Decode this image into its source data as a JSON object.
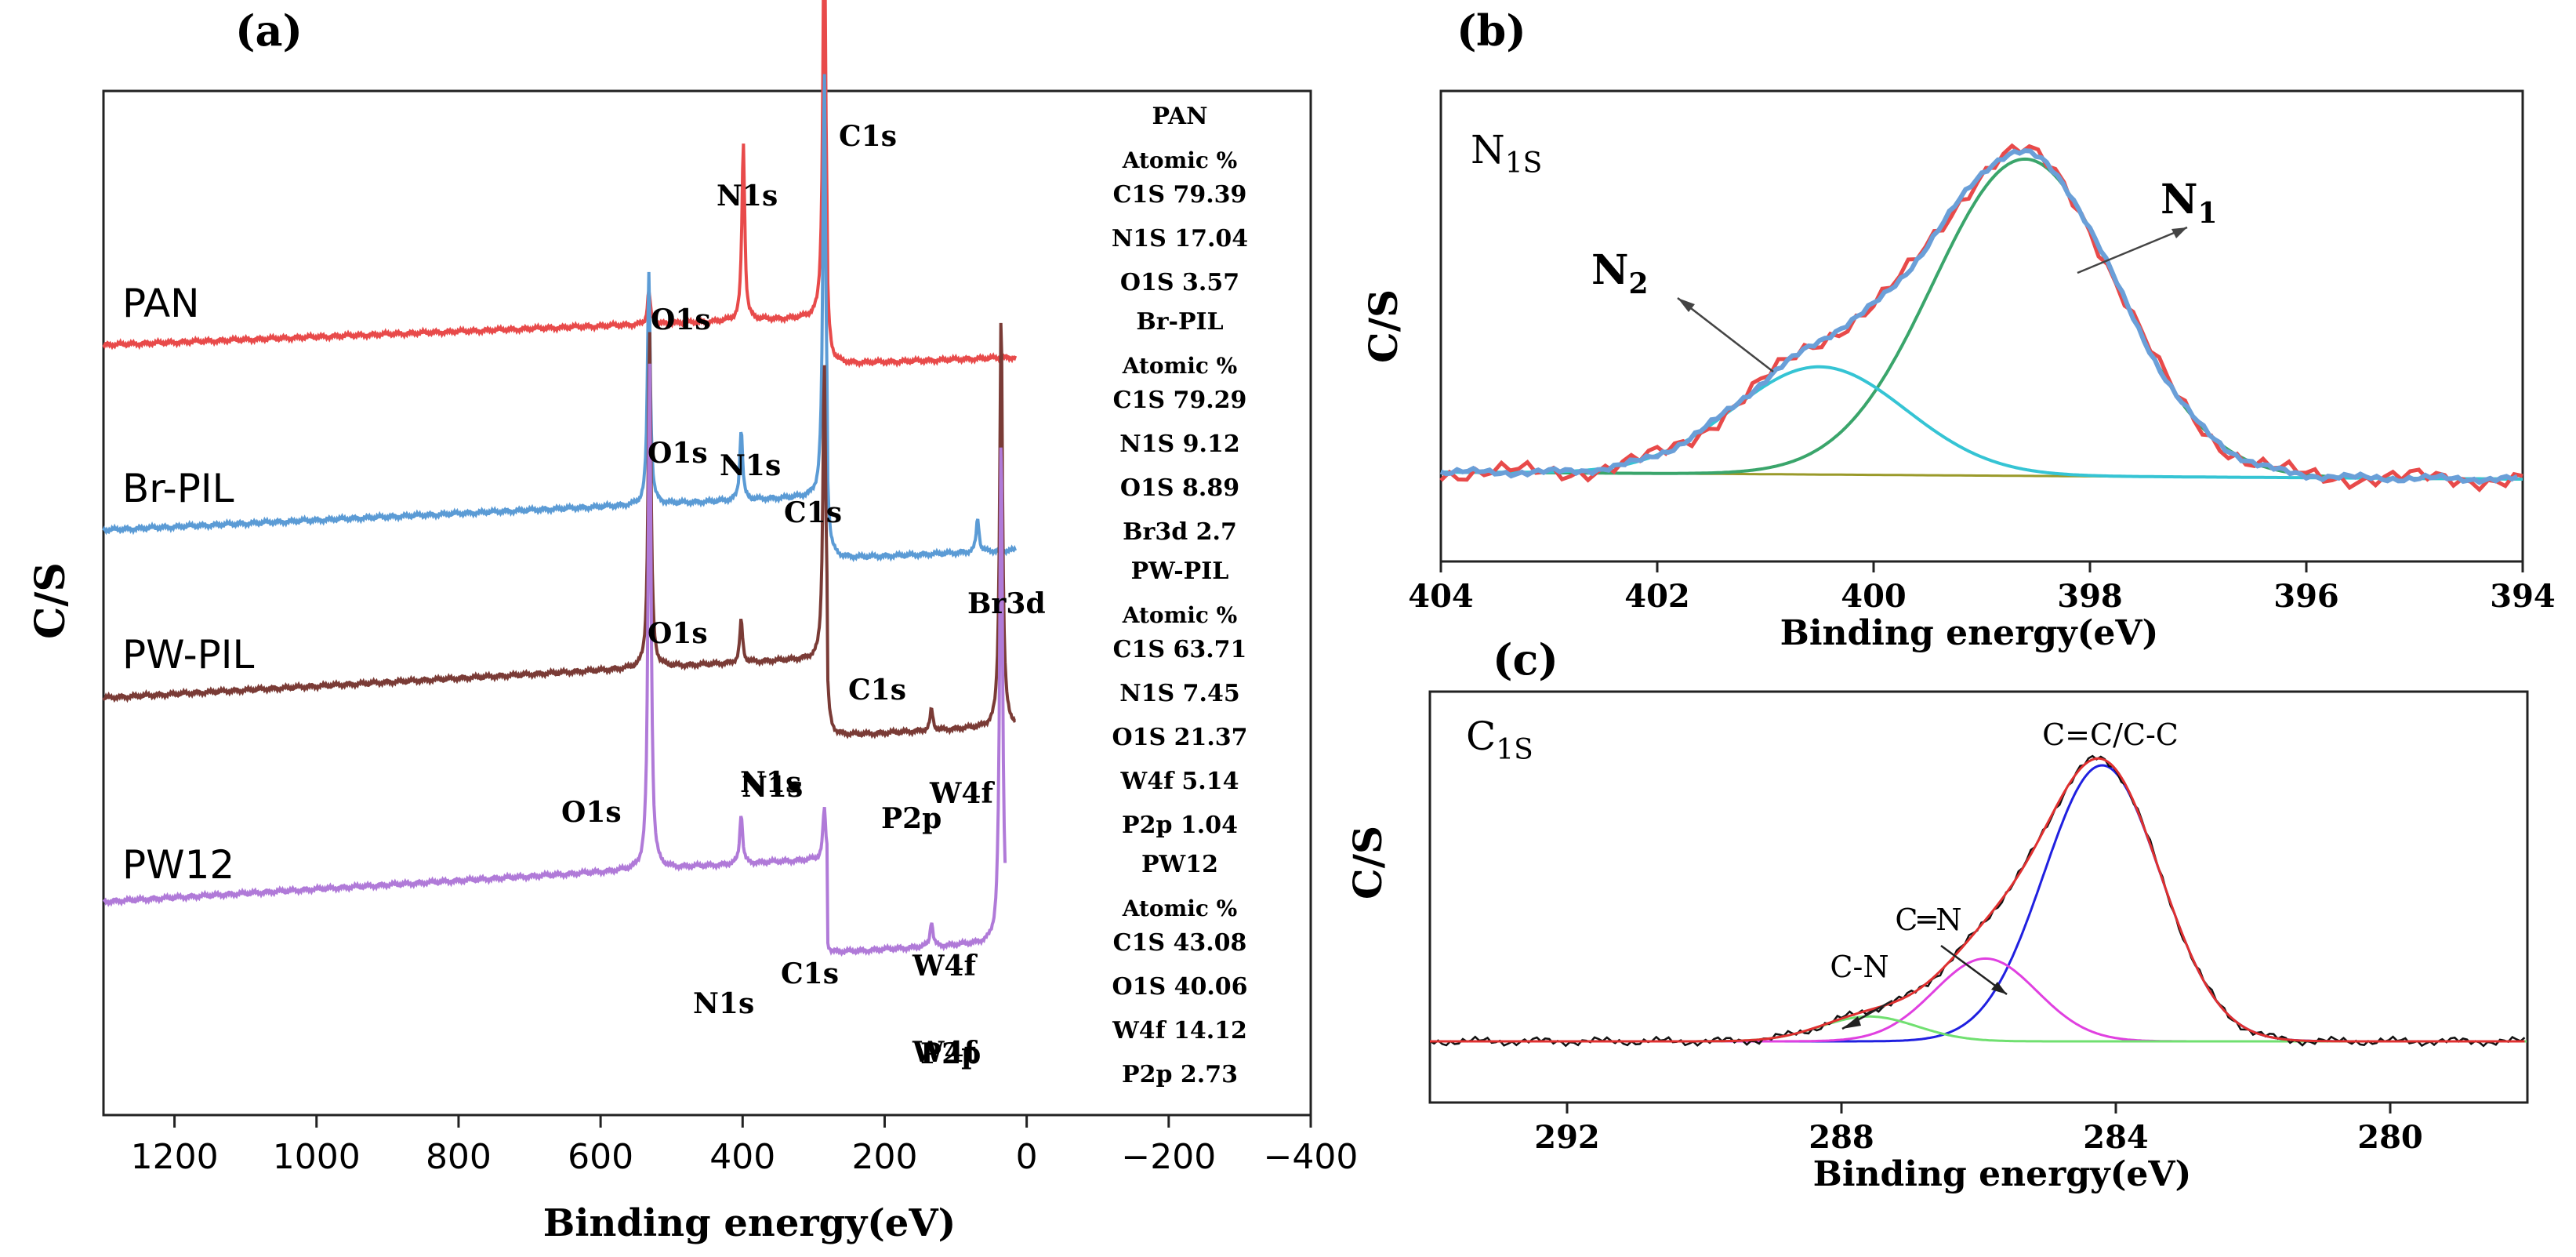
{
  "chart_data": [
    {
      "panel": "(a)",
      "type": "line",
      "xlabel": "Binding energy(eV)",
      "ylabel": "C/S",
      "xlim": [
        1300,
        -400
      ],
      "xticks": [
        "1200",
        "1000",
        "800",
        "600",
        "400",
        "200",
        "0",
        "−200",
        "−400"
      ],
      "xtick_values": [
        1200,
        1000,
        800,
        600,
        400,
        200,
        0,
        -200,
        -400
      ],
      "series": [
        {
          "name": "PAN",
          "color": "#e84a4a",
          "peaks": [
            {
              "label": "C1s",
              "x": 285,
              "height": 1.0
            },
            {
              "label": "N1s",
              "x": 399,
              "height": 0.42
            },
            {
              "label": "O1s",
              "x": 532,
              "height": 0.08
            }
          ],
          "annotations": [
            "C1s",
            "N1s",
            "O1s"
          ]
        },
        {
          "name": "Br-PIL",
          "color": "#5b9bd5",
          "peaks": [
            {
              "label": "C1s",
              "x": 285,
              "height": 1.0
            },
            {
              "label": "O1s",
              "x": 532,
              "height": 0.55
            },
            {
              "label": "N1s",
              "x": 402,
              "height": 0.17
            },
            {
              "label": "Br3d",
              "x": 69,
              "height": 0.08
            }
          ],
          "annotations": [
            "O1s",
            "N1s",
            "C1s",
            "Br3d"
          ]
        },
        {
          "name": "PW-PIL",
          "color": "#7a3b36",
          "peaks": [
            {
              "label": "O1s",
              "x": 531,
              "height": 0.8
            },
            {
              "label": "C1s",
              "x": 285,
              "height": 0.7
            },
            {
              "label": "W4f",
              "x": 36,
              "height": 0.98
            },
            {
              "label": "N1s",
              "x": 402,
              "height": 0.1
            },
            {
              "label": "P2p",
              "x": 134,
              "height": 0.05
            }
          ],
          "annotations": [
            "O1s",
            "C1s",
            "N1s",
            "W4f",
            "P2p"
          ]
        },
        {
          "name": "PW12",
          "color": "#b07ad8",
          "peaks": [
            {
              "label": "O1s",
              "x": 531,
              "height": 1.0
            },
            {
              "label": "W4f",
              "x": 36,
              "height": 1.0
            },
            {
              "label": "N1s",
              "x": 402,
              "height": 0.1
            },
            {
              "label": "C1s",
              "x": 285,
              "height": 0.1
            },
            {
              "label": "P2p",
              "x": 134,
              "height": 0.05
            }
          ],
          "annotations": [
            "O1s",
            "N1s",
            "N1s",
            "C1s",
            "W4f",
            "P2p",
            "W4f"
          ]
        }
      ],
      "atomic_table": [
        {
          "sample": "PAN",
          "header": "Atomic %",
          "rows": [
            "C1S  79.39",
            "N1S  17.04",
            "O1S  3.57"
          ]
        },
        {
          "sample": "Br-PIL",
          "header": "Atomic %",
          "rows": [
            "C1S  79.29",
            "N1S  9.12",
            "O1S  8.89",
            "Br3d  2.7"
          ]
        },
        {
          "sample": "PW-PIL",
          "header": "Atomic %",
          "rows": [
            "C1S  63.71",
            "N1S  7.45",
            "O1S  21.37",
            "W4f  5.14",
            "P2p  1.04"
          ]
        },
        {
          "sample": "PW12",
          "header": "Atomic %",
          "rows": [
            "C1S  43.08",
            "O1S  40.06",
            "W4f  14.12",
            "P2p  2.73"
          ]
        }
      ]
    },
    {
      "panel": "(b)",
      "type": "line",
      "title": "N1S",
      "xlabel": "Binding energy(eV)",
      "ylabel": "C/S",
      "xlim": [
        404,
        394
      ],
      "xticks": [
        "404",
        "402",
        "400",
        "398",
        "396",
        "394"
      ],
      "xtick_values": [
        404,
        402,
        400,
        398,
        396,
        394
      ],
      "components": [
        {
          "name": "N1",
          "center": 398.6,
          "sigma": 0.85,
          "amplitude": 1.0,
          "color": "#3aa56b"
        },
        {
          "name": "N2",
          "center": 400.5,
          "sigma": 0.8,
          "amplitude": 0.34,
          "color": "#35c4d4"
        }
      ],
      "raw_color": "#e84a4a",
      "fit_color": "#6a9fd8",
      "baseline_color": "#9a9a2a"
    },
    {
      "panel": "(c)",
      "type": "line",
      "title": "C1S",
      "xlabel": "Binding energy(eV)",
      "ylabel": "C/S",
      "xlim": [
        294,
        278
      ],
      "xticks": [
        "292",
        "288",
        "284",
        "280"
      ],
      "xtick_values": [
        292,
        288,
        284,
        280
      ],
      "components": [
        {
          "name": "C=C/C-C",
          "center": 284.2,
          "sigma": 0.85,
          "amplitude": 1.0,
          "color": "#2020e0"
        },
        {
          "name": "C=N",
          "center": 285.9,
          "sigma": 0.75,
          "amplitude": 0.3,
          "color": "#e040e0"
        },
        {
          "name": "C-N",
          "center": 287.6,
          "sigma": 0.7,
          "amplitude": 0.09,
          "color": "#70e070"
        }
      ],
      "raw_color": "#111111",
      "fit_color": "#e03030"
    }
  ],
  "labels": {
    "panel_a": "(a)",
    "panel_b": "(b)",
    "panel_c": "(c)",
    "b_title_main": "N",
    "b_title_sub": "1S",
    "c_title_main": "C",
    "c_title_sub": "1S",
    "n1_main": "N",
    "n1_sub": "1",
    "n2_main": "N",
    "n2_sub": "2",
    "c_c_label": "C=C/C-C",
    "c_n_double": "C═N",
    "c_n_single": "C-N"
  }
}
